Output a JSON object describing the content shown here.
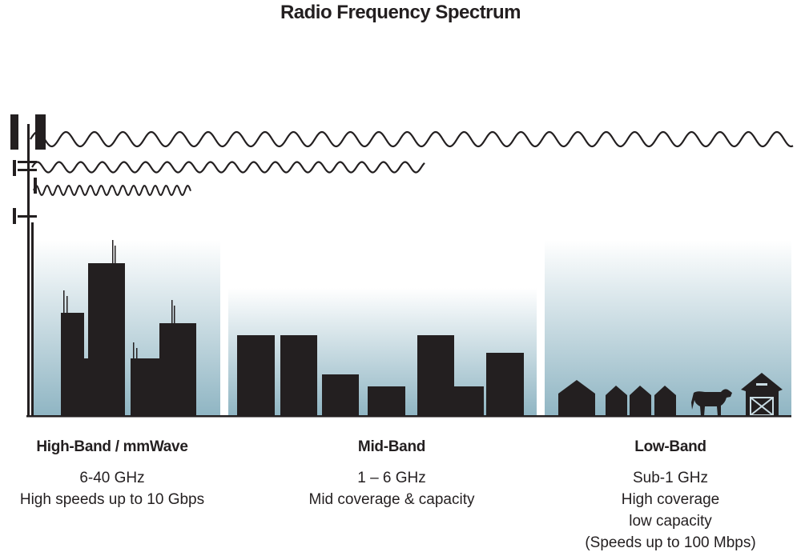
{
  "title": "Radio Frequency Spectrum",
  "colors": {
    "ink": "#231f20",
    "sky_top": "#ffffff",
    "sky_bottom": "#8fb5c3"
  },
  "bands": [
    {
      "name": "High-Band / mmWave",
      "lines": [
        "6-40 GHz",
        "High speeds up to 10 Gbps"
      ]
    },
    {
      "name": "Mid-Band",
      "lines": [
        "1 – 6 GHz",
        "Mid coverage & capacity"
      ]
    },
    {
      "name": "Low-Band",
      "lines": [
        "Sub-1 GHz",
        "High coverage",
        "low capacity",
        "(Speeds up to 100 Mbps)"
      ]
    }
  ],
  "icons": [
    "cell-tower-icon",
    "city-skyline-icon",
    "suburb-buildings-icon",
    "house-icon",
    "cow-icon",
    "barn-icon"
  ]
}
